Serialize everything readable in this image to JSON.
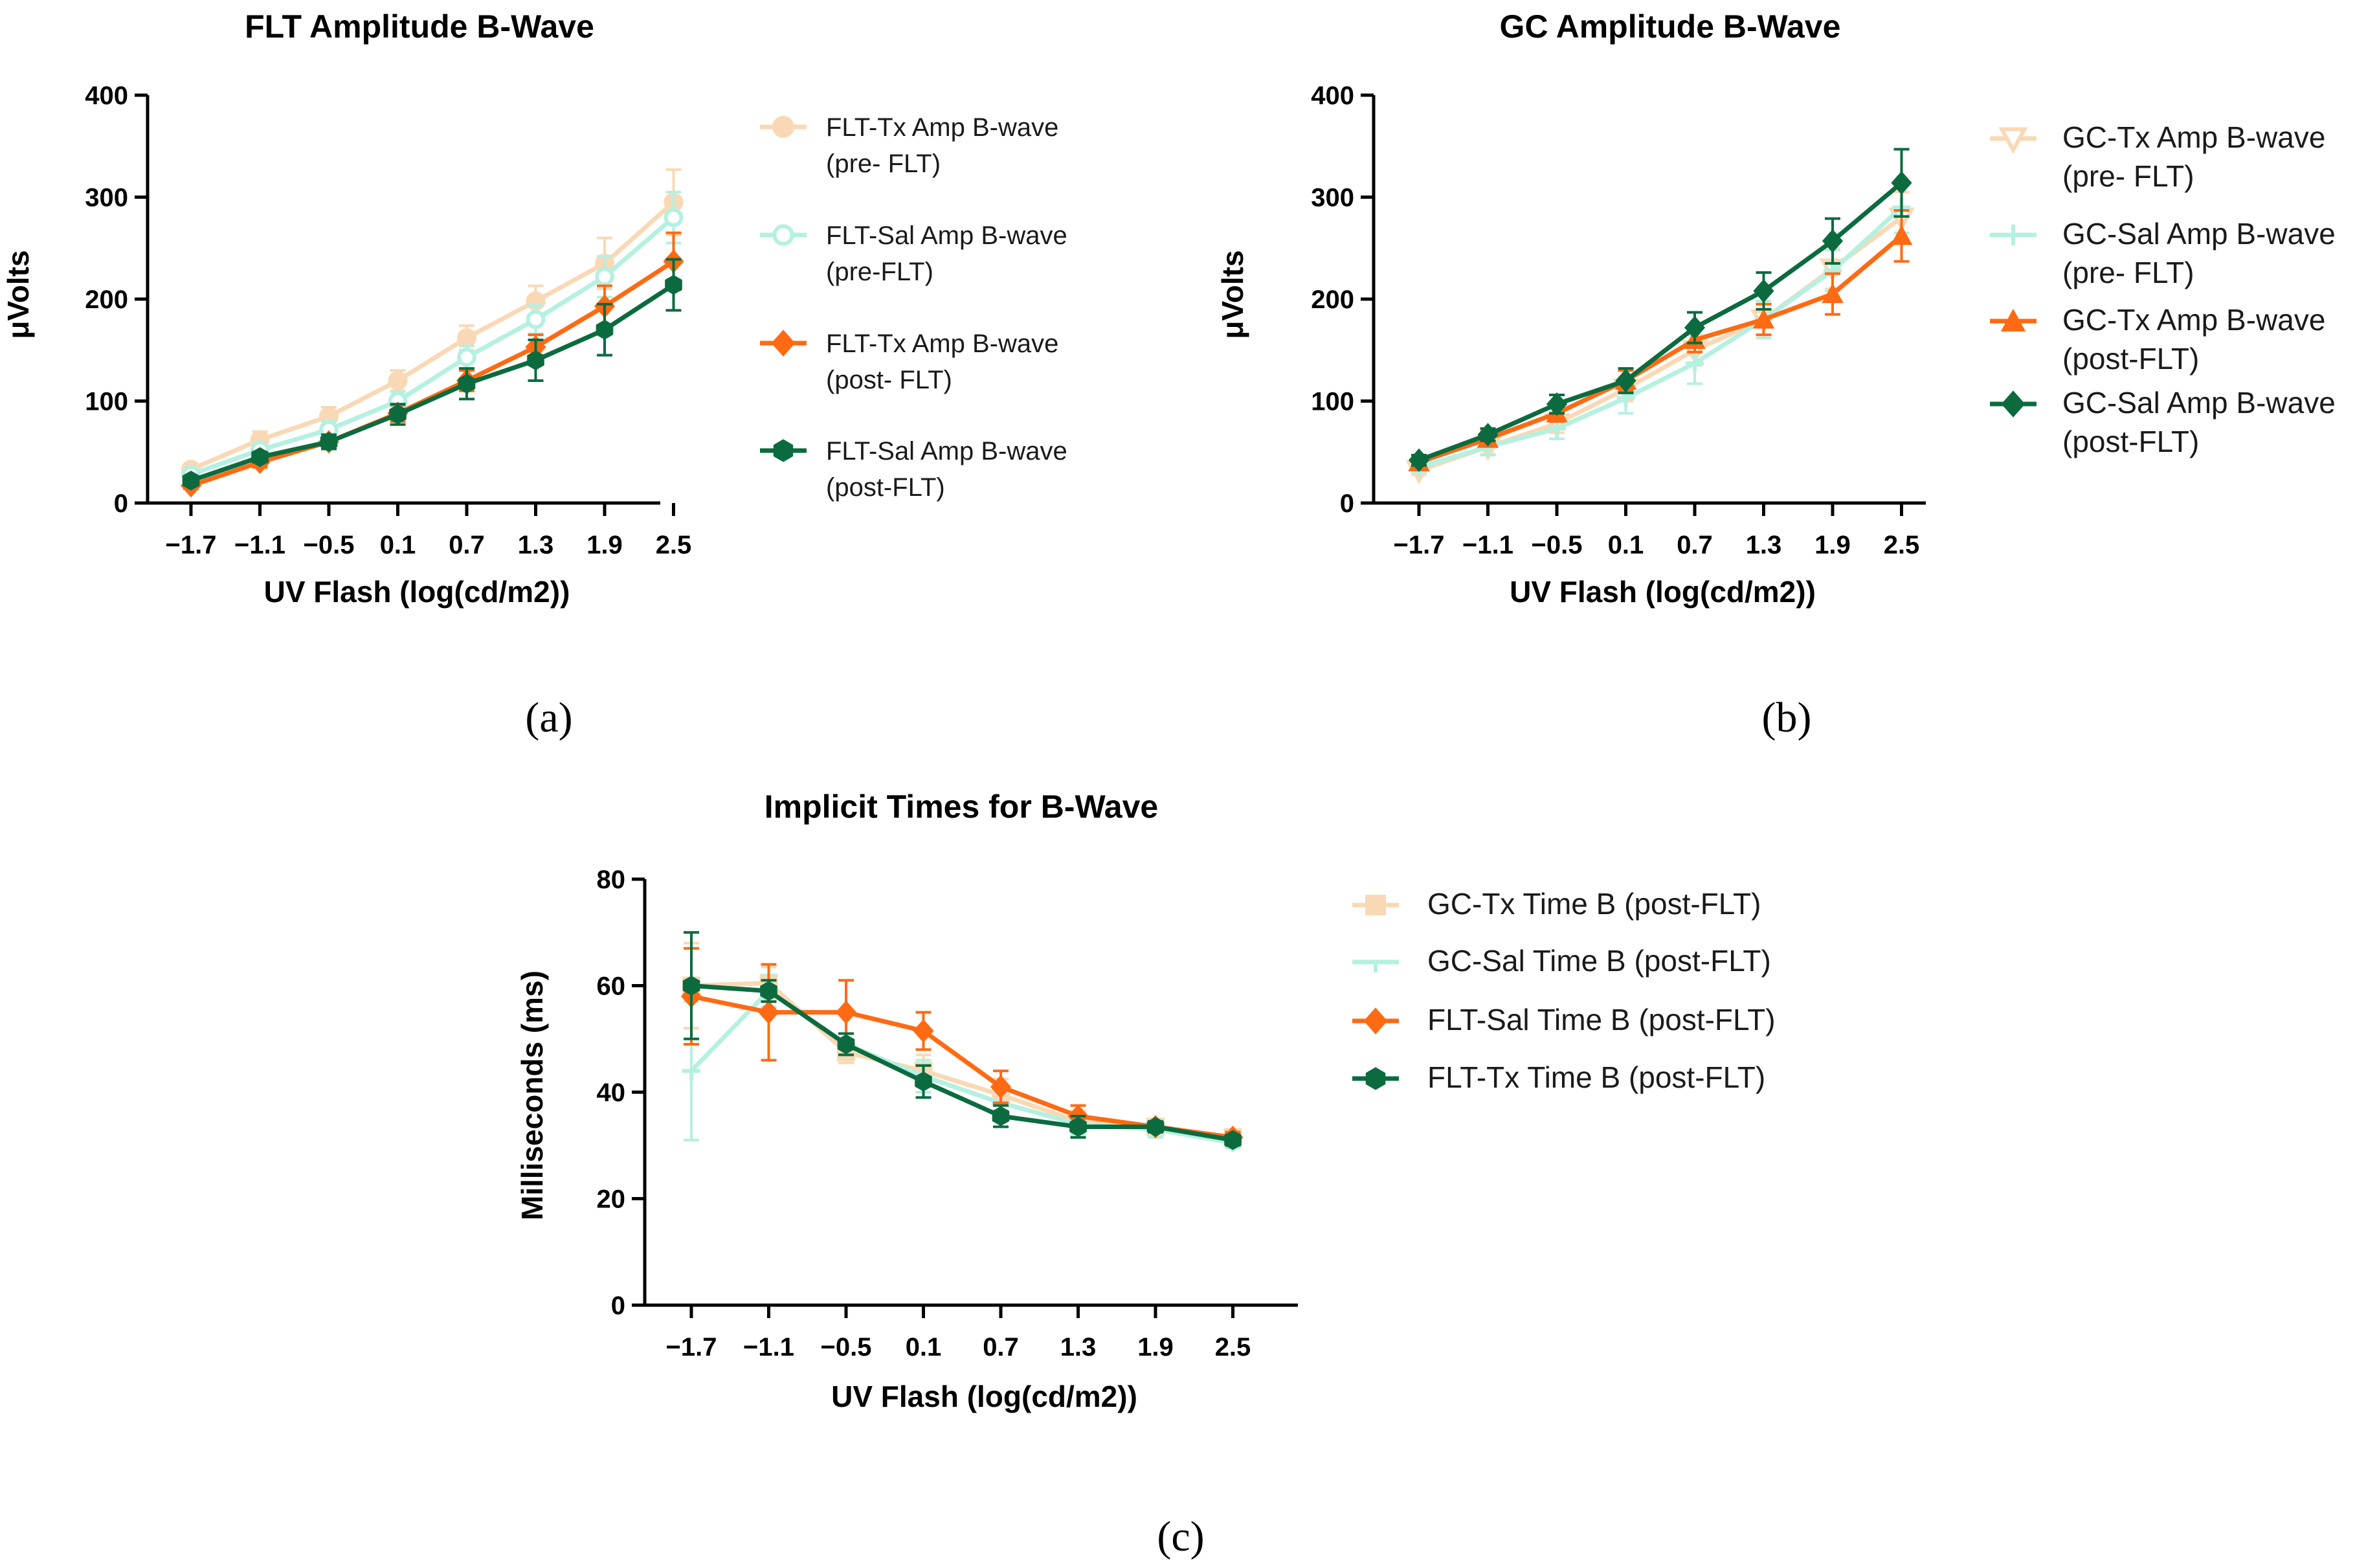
{
  "panel_labels": [
    "(a)",
    "(b)",
    "(c)"
  ],
  "chart_data": [
    {
      "type": "line",
      "title": "FLT Amplitude B-Wave",
      "xlabel": "UV Flash (log(cd/m2))",
      "ylabel": "μVolts",
      "categories": [
        "−1.7",
        "−1.1",
        "−0.5",
        "0.1",
        "0.7",
        "1.3",
        "1.9",
        "2.5"
      ],
      "ylim": [
        0,
        400
      ],
      "yticks": [
        0,
        100,
        200,
        300,
        400
      ],
      "legend_position": "right",
      "series": [
        {
          "name": "FLT-Tx Amp B-wave (pre- FLT)",
          "legend_lines": [
            "FLT-Tx Amp B-wave",
            "(pre- FLT)"
          ],
          "color": "#f9d9b5",
          "marker": "circle",
          "values": [
            33,
            62,
            85,
            120,
            162,
            198,
            235,
            295
          ],
          "errors": [
            5,
            8,
            9,
            10,
            12,
            15,
            25,
            32
          ]
        },
        {
          "name": "FLT-Sal Amp B-wave (pre-FLT)",
          "legend_lines": [
            "FLT-Sal Amp B-wave",
            "(pre-FLT)"
          ],
          "color": "#b5f0e1",
          "marker": "open-circle",
          "values": [
            28,
            52,
            72,
            100,
            143,
            180,
            222,
            280
          ],
          "errors": [
            4,
            6,
            8,
            9,
            11,
            14,
            20,
            25
          ]
        },
        {
          "name": "FLT-Tx Amp B-wave (post- FLT)",
          "legend_lines": [
            "FLT-Tx Amp B-wave",
            "(post- FLT)"
          ],
          "color": "#ff6a13",
          "marker": "diamond",
          "values": [
            17,
            40,
            60,
            88,
            120,
            153,
            193,
            237
          ],
          "errors": [
            3,
            5,
            7,
            8,
            10,
            12,
            20,
            28
          ]
        },
        {
          "name": "FLT-Sal Amp B-wave (post-FLT)",
          "legend_lines": [
            "FLT-Sal Amp B-wave",
            " (post-FLT)"
          ],
          "color": "#0b6b3f",
          "marker": "hexagon",
          "values": [
            22,
            45,
            60,
            87,
            117,
            140,
            170,
            214
          ],
          "errors": [
            3,
            5,
            7,
            10,
            15,
            20,
            25,
            25
          ]
        }
      ]
    },
    {
      "type": "line",
      "title": "GC Amplitude B-Wave",
      "xlabel": "UV Flash (log(cd/m2))",
      "ylabel": "μVolts",
      "categories": [
        "−1.7",
        "−1.1",
        "−0.5",
        "0.1",
        "0.7",
        "1.3",
        "1.9",
        "2.5"
      ],
      "ylim": [
        0,
        400
      ],
      "yticks": [
        0,
        100,
        200,
        300,
        400
      ],
      "legend_position": "right",
      "series": [
        {
          "name": "GC-Tx Amp B-wave (pre- FLT)",
          "legend_lines": [
            "GC-Tx  Amp B-wave",
            "(pre- FLT)"
          ],
          "color": "#f9d9b5",
          "marker": "triangle-down",
          "values": [
            32,
            55,
            78,
            112,
            150,
            180,
            230,
            280
          ],
          "errors": [
            4,
            7,
            9,
            12,
            15,
            18,
            20,
            25
          ]
        },
        {
          "name": "GC-Sal Amp B-wave (pre- FLT)",
          "legend_lines": [
            "GC-Sal  Amp B-wave",
            "(pre- FLT)"
          ],
          "color": "#b5f0e1",
          "marker": "plus",
          "values": [
            35,
            55,
            73,
            103,
            137,
            180,
            228,
            290
          ],
          "errors": [
            5,
            8,
            10,
            15,
            20,
            18,
            20,
            25
          ]
        },
        {
          "name": "GC-Tx Amp B-wave (post-FLT)",
          "legend_lines": [
            "GC-Tx Amp B-wave",
            "(post-FLT)"
          ],
          "color": "#ff6a13",
          "marker": "triangle-up",
          "values": [
            40,
            63,
            88,
            120,
            160,
            180,
            205,
            262
          ],
          "errors": [
            5,
            7,
            8,
            10,
            12,
            15,
            20,
            25
          ]
        },
        {
          "name": "GC-Sal Amp B-wave (post-FLT)",
          "legend_lines": [
            "GC-Sal Amp B-wave",
            "(post-FLT)"
          ],
          "color": "#0b6b3f",
          "marker": "diamond",
          "values": [
            42,
            67,
            97,
            120,
            172,
            208,
            257,
            314
          ],
          "errors": [
            5,
            6,
            9,
            12,
            15,
            18,
            22,
            33
          ]
        }
      ]
    },
    {
      "type": "line",
      "title": "Implicit Times for B-Wave",
      "xlabel": "UV Flash (log(cd/m2))",
      "ylabel": "Milliseconds (ms)",
      "categories": [
        "−1.7",
        "−1.1",
        "−0.5",
        "0.1",
        "0.7",
        "1.3",
        "1.9",
        "2.5"
      ],
      "ylim": [
        0,
        80
      ],
      "yticks": [
        0,
        20,
        40,
        60,
        80
      ],
      "legend_position": "right",
      "series": [
        {
          "name": "GC-Tx Time B (post-FLT)",
          "legend_lines": [
            "GC-Tx Time B (post-FLT)"
          ],
          "color": "#f9d9b5",
          "marker": "square",
          "values": [
            60,
            60.5,
            47.5,
            44,
            39.5,
            34.5,
            33.5,
            31.5
          ],
          "errors": [
            8,
            3,
            2,
            3,
            3,
            2,
            1.5,
            1.5
          ]
        },
        {
          "name": "GC-Sal Time B (post-FLT)",
          "legend_lines": [
            "GC-Sal Time B (post-FLT)"
          ],
          "color": "#b5f0e1",
          "marker": "tee",
          "values": [
            44,
            59,
            49,
            43,
            38,
            34,
            33,
            30.5
          ],
          "errors": [
            13,
            3,
            2,
            3,
            2,
            2,
            1.5,
            1
          ]
        },
        {
          "name": "FLT-Sal Time B (post-FLT)",
          "legend_lines": [
            "FLT-Sal Time B (post-FLT)"
          ],
          "color": "#ff6a13",
          "marker": "diamond",
          "values": [
            58,
            55,
            55,
            51.5,
            41,
            35.5,
            33.5,
            31.5
          ],
          "errors": [
            9,
            9,
            6,
            3.5,
            3,
            2,
            1,
            1
          ]
        },
        {
          "name": "FLT-Tx Time B (post-FLT)",
          "legend_lines": [
            "FLT-Tx Time B (post-FLT)"
          ],
          "color": "#0b6b3f",
          "marker": "hexagon",
          "values": [
            60,
            59,
            49,
            42,
            35.5,
            33.5,
            33.5,
            31
          ],
          "errors": [
            10,
            2,
            2,
            3,
            2,
            2,
            1,
            1
          ]
        }
      ]
    }
  ]
}
